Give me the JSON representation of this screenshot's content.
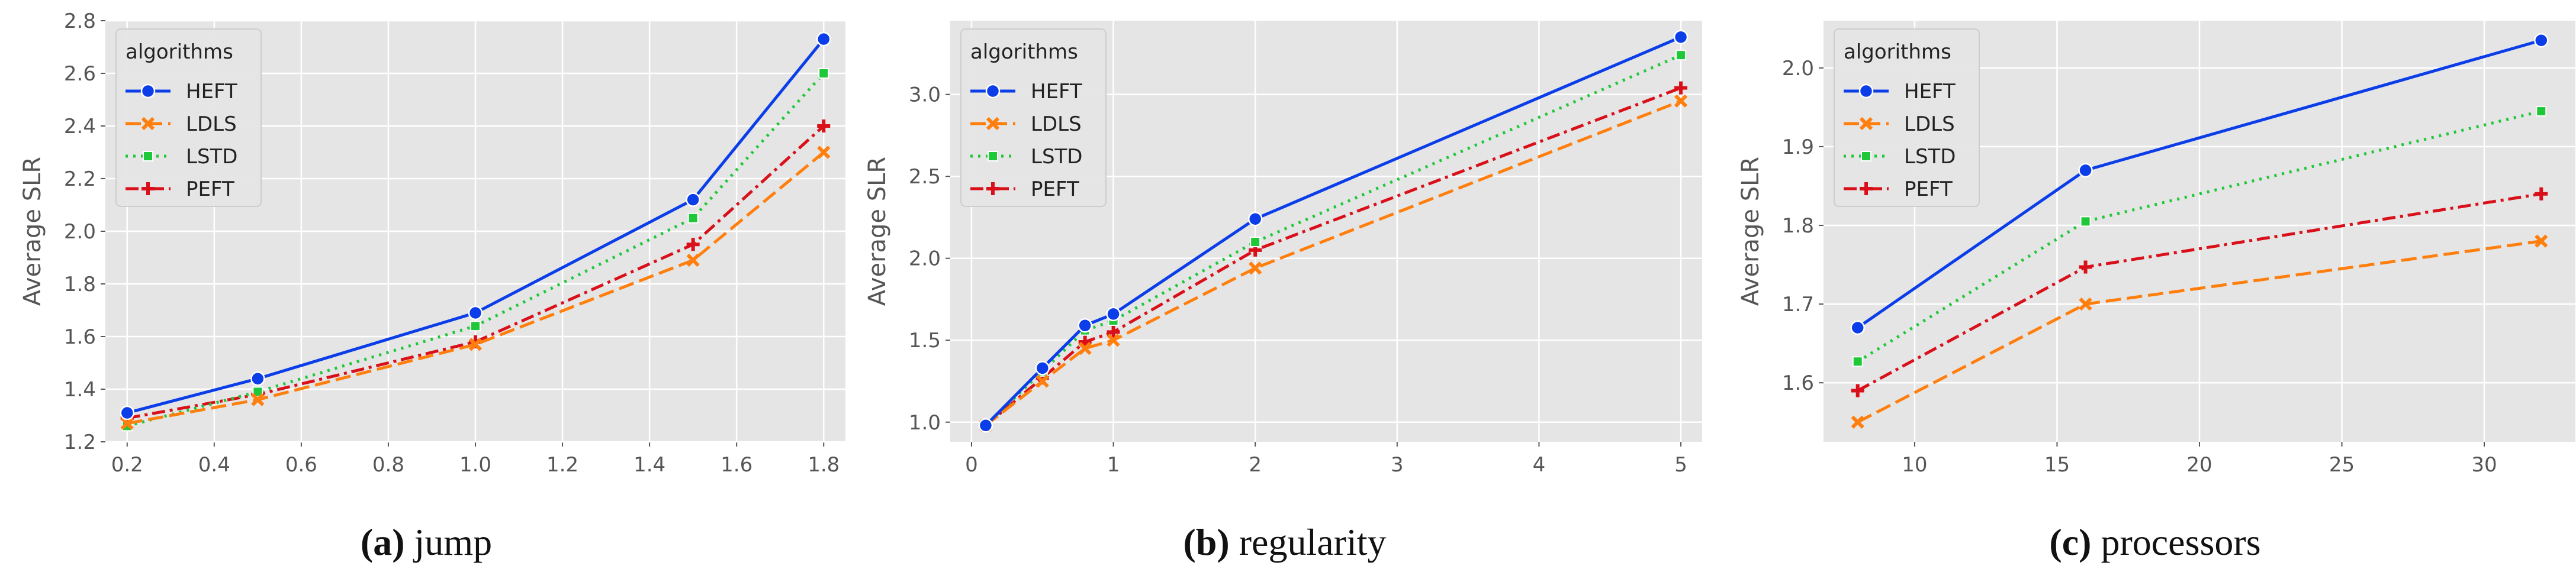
{
  "colors": {
    "background": "#e5e5e5",
    "grid": "#ffffff",
    "tick_text": "#555555",
    "HEFT": "#0b3ee8",
    "LDLS": "#ff7f0e",
    "LSTD": "#1ec838",
    "PEFT": "#d9101a"
  },
  "legend_title": "algorithms",
  "chart_data": [
    {
      "type": "line",
      "xlabel": "",
      "ylabel": "Average SLR",
      "x": [
        0.2,
        0.5,
        1.0,
        1.5,
        1.8
      ],
      "xlim": [
        0.15,
        1.85
      ],
      "ylim": [
        1.2,
        2.8
      ],
      "xticks": [
        "0.2",
        "0.4",
        "0.6",
        "0.8",
        "1.0",
        "1.2",
        "1.4",
        "1.6",
        "1.8"
      ],
      "xtick_values": [
        0.2,
        0.4,
        0.6,
        0.8,
        1.0,
        1.2,
        1.4,
        1.6,
        1.8
      ],
      "yticks": [
        "1.2",
        "1.4",
        "1.6",
        "1.8",
        "2.0",
        "2.2",
        "2.4",
        "2.6",
        "2.8"
      ],
      "ytick_values": [
        1.2,
        1.4,
        1.6,
        1.8,
        2.0,
        2.2,
        2.4,
        2.6,
        2.8
      ],
      "legend_position": "upper-left",
      "caption_label": "(a)",
      "caption_text": " jump",
      "series": [
        {
          "name": "HEFT",
          "values": [
            1.31,
            1.44,
            1.69,
            2.12,
            2.73
          ]
        },
        {
          "name": "LDLS",
          "values": [
            1.27,
            1.36,
            1.57,
            1.89,
            2.3
          ]
        },
        {
          "name": "LSTD",
          "values": [
            1.26,
            1.39,
            1.64,
            2.05,
            2.6
          ]
        },
        {
          "name": "PEFT",
          "values": [
            1.29,
            1.38,
            1.58,
            1.95,
            2.4
          ]
        }
      ]
    },
    {
      "type": "line",
      "xlabel": "",
      "ylabel": "Average SLR",
      "x": [
        0.1,
        0.5,
        0.8,
        1.0,
        2.0,
        5.0
      ],
      "xlim": [
        -0.15,
        5.15
      ],
      "ylim": [
        0.88,
        3.45
      ],
      "xticks": [
        "0",
        "1",
        "2",
        "3",
        "4",
        "5"
      ],
      "xtick_values": [
        0,
        1,
        2,
        3,
        4,
        5
      ],
      "yticks": [
        "1.0",
        "1.5",
        "2.0",
        "2.5",
        "3.0"
      ],
      "ytick_values": [
        1.0,
        1.5,
        2.0,
        2.5,
        3.0
      ],
      "legend_position": "upper-left",
      "caption_label": "(b)",
      "caption_text": " regularity",
      "series": [
        {
          "name": "HEFT",
          "values": [
            0.98,
            1.33,
            1.59,
            1.66,
            2.24,
            3.35
          ]
        },
        {
          "name": "LDLS",
          "values": [
            0.98,
            1.25,
            1.45,
            1.5,
            1.94,
            2.96
          ]
        },
        {
          "name": "LSTD",
          "values": [
            0.98,
            1.31,
            1.56,
            1.62,
            2.1,
            3.24
          ]
        },
        {
          "name": "PEFT",
          "values": [
            0.98,
            1.27,
            1.49,
            1.55,
            2.05,
            3.04
          ]
        }
      ]
    },
    {
      "type": "line",
      "xlabel": "",
      "ylabel": "Average SLR",
      "x": [
        8,
        16,
        32
      ],
      "xlim": [
        6.8,
        33.2
      ],
      "ylim": [
        1.525,
        2.06
      ],
      "xticks": [
        "10",
        "15",
        "20",
        "25",
        "30"
      ],
      "xtick_values": [
        10,
        15,
        20,
        25,
        30
      ],
      "yticks": [
        "1.6",
        "1.7",
        "1.8",
        "1.9",
        "2.0"
      ],
      "ytick_values": [
        1.6,
        1.7,
        1.8,
        1.9,
        2.0
      ],
      "legend_position": "upper-left",
      "caption_label": "(c)",
      "caption_text": " processors",
      "series": [
        {
          "name": "HEFT",
          "values": [
            1.67,
            1.87,
            2.035
          ]
        },
        {
          "name": "LDLS",
          "values": [
            1.55,
            1.7,
            1.78
          ]
        },
        {
          "name": "LSTD",
          "values": [
            1.627,
            1.805,
            1.945
          ]
        },
        {
          "name": "PEFT",
          "values": [
            1.59,
            1.747,
            1.84
          ]
        }
      ]
    }
  ]
}
